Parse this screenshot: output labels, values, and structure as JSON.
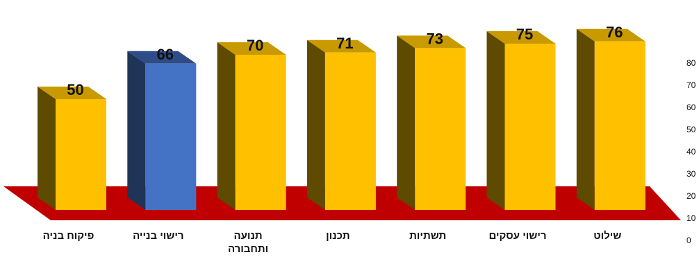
{
  "chart_data": {
    "type": "bar",
    "style": "3d",
    "categories": [
      "פיקוח בניה",
      "רישוי בנייה",
      "תנועה ותחבורה",
      "תכנון",
      "תשתיות",
      "רישוי עסקים",
      "שילוט"
    ],
    "category_lines": [
      [
        "פיקוח בניה"
      ],
      [
        "רישוי בנייה"
      ],
      [
        "תנועה",
        "ותחבורה"
      ],
      [
        "תכנון"
      ],
      [
        "תשתיות"
      ],
      [
        "רישוי עסקים"
      ],
      [
        "שילוט"
      ]
    ],
    "values": [
      50,
      66,
      70,
      71,
      73,
      75,
      76
    ],
    "highlight_index": 1,
    "ylim": [
      0,
      80
    ],
    "yticks": [
      "0",
      "10",
      "20",
      "30",
      "40",
      "50",
      "60",
      "70",
      "80"
    ],
    "y_axis_side": "right",
    "grid": false,
    "legend": "none",
    "colors": {
      "bar_front": "#FFC000",
      "bar_side": "#5E4A00",
      "bar_top": "#C89A00",
      "highlight_front": "#4472C4",
      "highlight_side": "#1F3457",
      "highlight_top": "#2E4C87",
      "floor": "#C00000"
    }
  }
}
